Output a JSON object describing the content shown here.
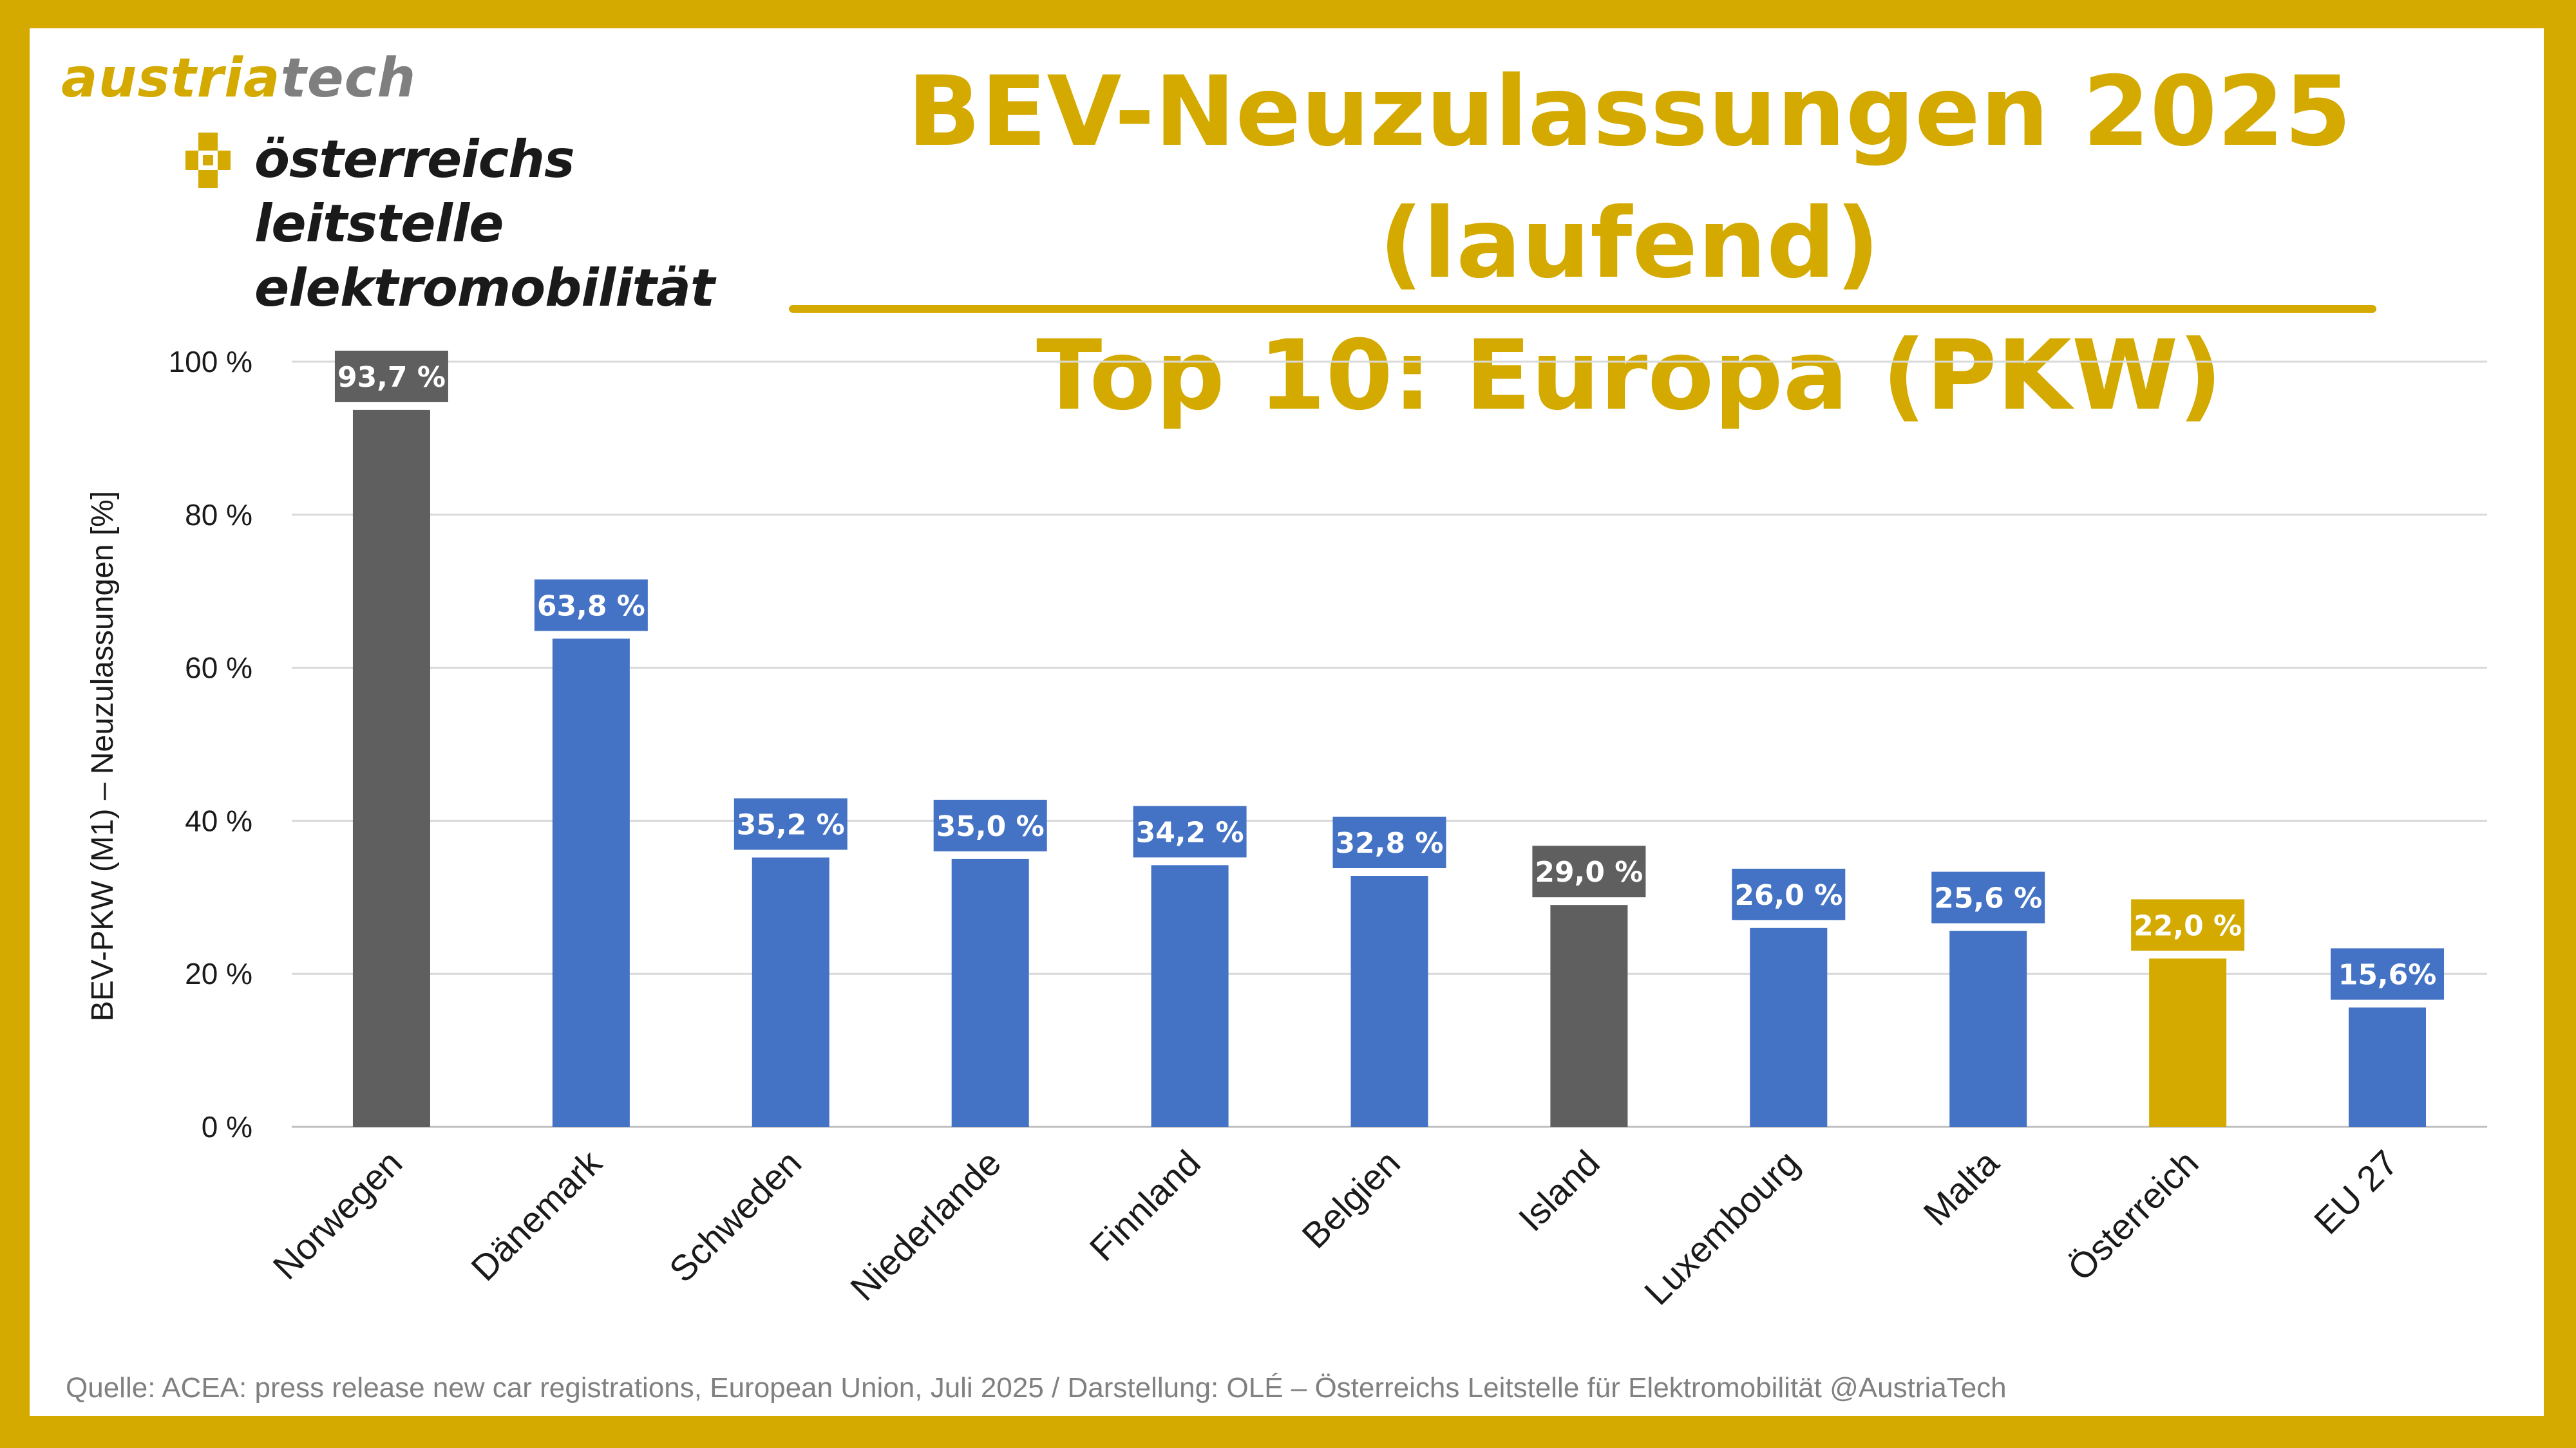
{
  "logo": {
    "brand_part1": "austria",
    "brand_part2": "tech",
    "line1": "österreichs",
    "line2": "leitstelle",
    "line3": "elektromobilität"
  },
  "title": {
    "line1": "BEV-Neuzulassungen 2025 (laufend)",
    "line2": "Top 10: Europa (PKW)"
  },
  "source": "Quelle: ACEA: press release new car registrations, European Union, Juli 2025 / Darstellung: OLÉ – Österreichs Leitstelle für Elektromobilität @AustriaTech",
  "colors": {
    "frame": "#D4AA00",
    "title": "#D4AA00",
    "gray_bar": "#5f5f5f",
    "blue_bar": "#4472C4",
    "gold_bar": "#D4AA00",
    "gridline": "#d9d9d9"
  },
  "chart_data": {
    "type": "bar",
    "title": "BEV-Neuzulassungen 2025 (laufend) Top 10: Europa (PKW)",
    "xlabel": "",
    "ylabel": "BEV-PKW (M1) – Neuzulassungen [%]",
    "ylim": [
      0,
      100
    ],
    "yticks": [
      0,
      20,
      40,
      60,
      80,
      100
    ],
    "ytick_labels": [
      "0 %",
      "20 %",
      "40 %",
      "60 %",
      "80 %",
      "100 %"
    ],
    "grid": true,
    "categories": [
      "Norwegen",
      "Dänemark",
      "Schweden",
      "Niederlande",
      "Finnland",
      "Belgien",
      "Island",
      "Luxembourg",
      "Malta",
      "Österreich",
      "EU 27"
    ],
    "values": [
      93.7,
      63.8,
      35.2,
      35.0,
      34.2,
      32.8,
      29.0,
      26.0,
      25.6,
      22.0,
      15.6
    ],
    "labels": [
      "93,7 %",
      "63,8 %",
      "35,2 %",
      "35,0 %",
      "34,2 %",
      "32,8 %",
      "29,0 %",
      "26,0 %",
      "25,6 %",
      "22,0 %",
      "15,6%"
    ],
    "bar_colors": [
      "#5f5f5f",
      "#4472C4",
      "#4472C4",
      "#4472C4",
      "#4472C4",
      "#4472C4",
      "#5f5f5f",
      "#4472C4",
      "#4472C4",
      "#D4AA00",
      "#4472C4"
    ]
  }
}
